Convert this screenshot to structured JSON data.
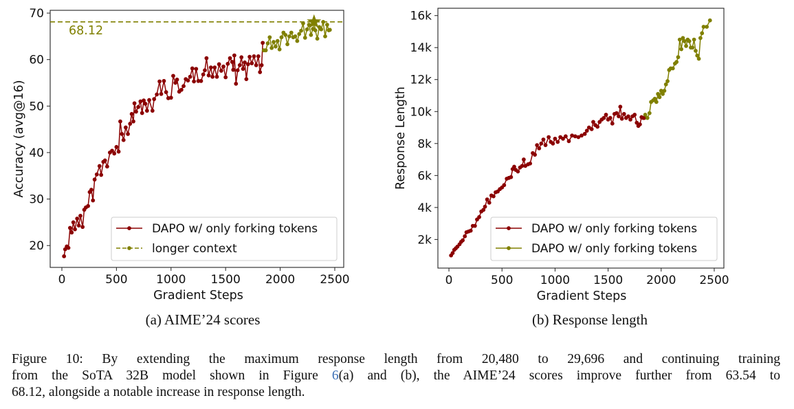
{
  "subcaptions": {
    "a": "(a) AIME’24 scores",
    "b": "(b) Response length"
  },
  "caption": {
    "line1": "Figure 10: By extending the maximum response length from 20,480 to 29,696 and continuing training",
    "line2_before": "from the SoTA 32B model shown in Figure ",
    "line2_ref": "6",
    "line2_after": "(a) and (b), the AIME’24 scores improve further from 63.54 to",
    "line3": "68.12, alongside a notable increase in response length."
  },
  "chart_data": [
    {
      "type": "line",
      "xlabel": "Gradient Steps",
      "ylabel": "Accuracy (avg@16)",
      "xlim": [
        -107,
        2582
      ],
      "ylim": [
        15.3,
        70.6
      ],
      "xticks": [
        0,
        500,
        1000,
        1500,
        2000,
        2500
      ],
      "yticks": [
        20,
        30,
        40,
        50,
        60,
        70
      ],
      "ytick_labels": [
        "20",
        "30",
        "40",
        "50",
        "60",
        "70"
      ],
      "grid": false,
      "legend": "lower-right",
      "reference_line": {
        "y": 68.12,
        "label": "68.12",
        "style": "dashed",
        "color": "#808000"
      },
      "best_marker": {
        "x": 2310,
        "y": 68.12,
        "shape": "star",
        "color": "#808000"
      },
      "series": [
        {
          "name": "DAPO w/ only forking tokens",
          "color": "#8b0000",
          "style": "solid",
          "x": [
            20,
            30,
            45,
            60,
            75,
            90,
            105,
            120,
            140,
            155,
            170,
            190,
            205,
            220,
            240,
            255,
            270,
            285,
            300,
            320,
            345,
            360,
            380,
            395,
            415,
            440,
            460,
            480,
            500,
            520,
            535,
            550,
            565,
            585,
            605,
            625,
            640,
            655,
            665,
            680,
            700,
            720,
            735,
            750,
            765,
            780,
            800,
            830,
            845,
            870,
            895,
            910,
            935,
            955,
            975,
            1000,
            1020,
            1040,
            1055,
            1075,
            1095,
            1115,
            1135,
            1155,
            1175,
            1195,
            1210,
            1230,
            1250,
            1275,
            1295,
            1310,
            1325,
            1345,
            1365,
            1380,
            1400,
            1420,
            1440,
            1460,
            1480,
            1500,
            1520,
            1540,
            1560,
            1570,
            1580,
            1595,
            1610,
            1630,
            1645,
            1660,
            1675,
            1690,
            1705,
            1720,
            1740,
            1760,
            1780,
            1800,
            1815,
            1830,
            1840
          ],
          "y": [
            17.7,
            19.2,
            19.8,
            19.5,
            23.8,
            22.8,
            25,
            23.5,
            25.8,
            24.3,
            26.4,
            24,
            27.7,
            28.2,
            28.5,
            31.5,
            32,
            29.7,
            34.2,
            35.3,
            37.1,
            35.2,
            38,
            38.3,
            37,
            40,
            40.4,
            39.8,
            41.2,
            40.2,
            46.7,
            44,
            42.7,
            45.4,
            44,
            46.2,
            48.3,
            46.7,
            50.6,
            48.8,
            49.8,
            51,
            48.5,
            51.2,
            50.5,
            49,
            51.3,
            49,
            51.5,
            52.5,
            55.3,
            52.6,
            55.4,
            53,
            51.7,
            51.8,
            56.5,
            55,
            55.7,
            53.1,
            53.5,
            54.3,
            55.8,
            55.5,
            56.3,
            58.1,
            55.3,
            58,
            55.4,
            55.4,
            56.8,
            57.7,
            60.3,
            56.6,
            58.3,
            56.3,
            58.3,
            56.3,
            59,
            57.6,
            58.5,
            56.2,
            59.1,
            60.3,
            59.5,
            57.8,
            60.9,
            54.8,
            57.7,
            58.8,
            60.5,
            58,
            59.4,
            55.8,
            59,
            60.6,
            59.2,
            60.7,
            58.8,
            60.7,
            57.3,
            58.8,
            63.6
          ]
        },
        {
          "name": "longer context",
          "color": "#808000",
          "style": "solid",
          "legend_style": "dashed",
          "x": [
            1850,
            1868,
            1886,
            1904,
            1922,
            1940,
            1958,
            1976,
            1994,
            2012,
            2030,
            2048,
            2066,
            2084,
            2102,
            2120,
            2138,
            2156,
            2174,
            2192,
            2210,
            2228,
            2246,
            2264,
            2282,
            2300,
            2310,
            2322,
            2340,
            2358,
            2376,
            2394,
            2412,
            2430,
            2445,
            2455
          ],
          "y": [
            62,
            62,
            63.5,
            64.8,
            62.5,
            63.8,
            62.8,
            64,
            62.2,
            64.8,
            65.8,
            65.3,
            63.3,
            65,
            65.8,
            64.8,
            65,
            64,
            65.5,
            66.2,
            67.8,
            64.7,
            66.5,
            67.5,
            65.3,
            66.6,
            68.12,
            66.3,
            64.5,
            67,
            66.5,
            68.1,
            65,
            67.5,
            66.3,
            66.4
          ]
        }
      ]
    },
    {
      "type": "line",
      "xlabel": "Gradient Steps",
      "ylabel": "Response Length",
      "xlim": [
        -104,
        2591
      ],
      "ylim": [
        210,
        16460
      ],
      "xticks": [
        0,
        500,
        1000,
        1500,
        2000,
        2500
      ],
      "yticks": [
        2000,
        4000,
        6000,
        8000,
        10000,
        12000,
        14000,
        16000
      ],
      "ytick_labels": [
        "2k",
        "4k",
        "6k",
        "8k",
        "10k",
        "12k",
        "14k",
        "16k"
      ],
      "grid": false,
      "legend": "lower-right",
      "series": [
        {
          "name": "DAPO w/ only forking tokens",
          "color": "#8b0000",
          "style": "solid",
          "x": [
            20,
            35,
            50,
            65,
            80,
            100,
            115,
            130,
            150,
            165,
            185,
            205,
            225,
            245,
            265,
            285,
            305,
            325,
            340,
            360,
            380,
            400,
            420,
            440,
            460,
            480,
            500,
            520,
            545,
            565,
            585,
            600,
            615,
            630,
            650,
            670,
            690,
            705,
            720,
            745,
            765,
            790,
            810,
            830,
            850,
            870,
            890,
            910,
            940,
            960,
            980,
            1000,
            1025,
            1050,
            1075,
            1100,
            1130,
            1160,
            1190,
            1220,
            1250,
            1280,
            1300,
            1320,
            1345,
            1360,
            1380,
            1400,
            1420,
            1440,
            1460,
            1480,
            1500,
            1520,
            1540,
            1560,
            1580,
            1600,
            1615,
            1630,
            1650,
            1670,
            1690,
            1710,
            1730,
            1750,
            1770,
            1785,
            1800,
            1815,
            1830,
            1840
          ],
          "y": [
            1000,
            1150,
            1350,
            1450,
            1550,
            1700,
            1850,
            1950,
            2200,
            2450,
            2500,
            2550,
            2850,
            2850,
            3250,
            3400,
            3750,
            3850,
            4050,
            4500,
            4300,
            4750,
            4700,
            4950,
            5000,
            5150,
            5250,
            5400,
            5800,
            5850,
            5900,
            6400,
            6550,
            6350,
            6250,
            6500,
            6600,
            7000,
            6600,
            6700,
            6750,
            7400,
            7300,
            7900,
            7700,
            8000,
            8250,
            7900,
            8400,
            8100,
            8000,
            8300,
            8100,
            8400,
            8300,
            8450,
            8150,
            8500,
            8450,
            8400,
            8500,
            8600,
            8800,
            9000,
            8900,
            9350,
            9150,
            9050,
            9350,
            9500,
            9600,
            9800,
            9500,
            9600,
            9250,
            9850,
            9900,
            9700,
            10300,
            9550,
            9850,
            9600,
            9700,
            9500,
            9700,
            9800,
            9300,
            9100,
            9200,
            9650,
            9600,
            9600
          ]
        },
        {
          "name": "DAPO w/ only forking tokens",
          "color": "#808000",
          "style": "solid",
          "x": [
            1850,
            1870,
            1890,
            1905,
            1925,
            1940,
            1955,
            1970,
            1985,
            2000,
            2015,
            2030,
            2045,
            2060,
            2075,
            2090,
            2110,
            2130,
            2145,
            2160,
            2175,
            2190,
            2205,
            2220,
            2235,
            2250,
            2265,
            2280,
            2295,
            2310,
            2325,
            2340,
            2355,
            2370,
            2385,
            2400,
            2430,
            2460
          ],
          "y": [
            9800,
            9600,
            9900,
            10600,
            10700,
            10800,
            10600,
            11100,
            10900,
            11300,
            11100,
            11300,
            11700,
            11900,
            12600,
            12700,
            12700,
            13000,
            13100,
            13400,
            14500,
            13900,
            14600,
            14400,
            14100,
            14500,
            14400,
            14000,
            14000,
            14500,
            13800,
            13500,
            13300,
            14600,
            14900,
            15300,
            15300,
            15700
          ]
        }
      ]
    }
  ]
}
